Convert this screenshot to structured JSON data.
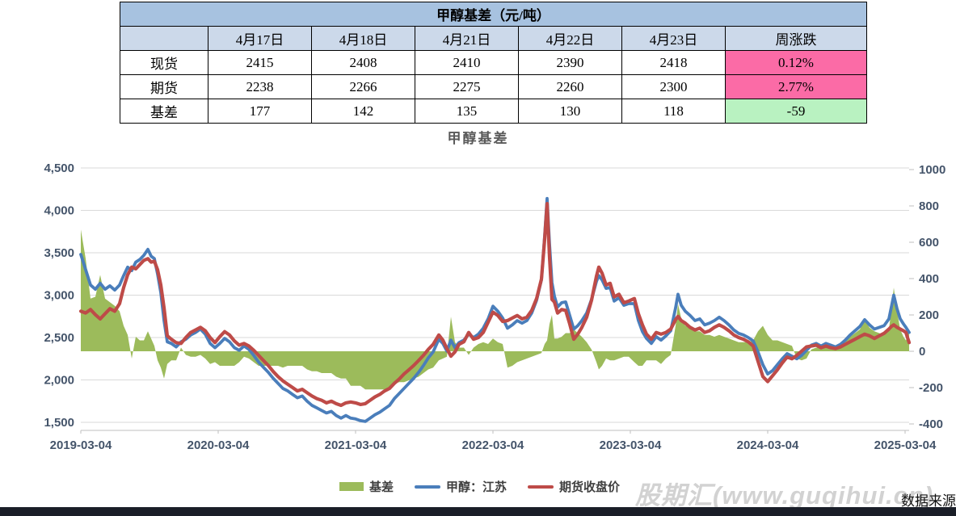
{
  "table": {
    "title": "甲醇基差（元/吨）",
    "columns": [
      "",
      "4月17日",
      "4月18日",
      "4月21日",
      "4月22日",
      "4月23日",
      "周涨跌"
    ],
    "rows": [
      {
        "label": "现货",
        "values": [
          "2415",
          "2408",
          "2410",
          "2390",
          "2418"
        ],
        "change": "0.12%",
        "change_style": "pink"
      },
      {
        "label": "期货",
        "values": [
          "2238",
          "2266",
          "2275",
          "2260",
          "2300"
        ],
        "change": "2.77%",
        "change_style": "pink"
      },
      {
        "label": "基差",
        "values": [
          "177",
          "142",
          "135",
          "130",
          "118"
        ],
        "change": "-59",
        "change_style": "green"
      }
    ]
  },
  "chart_data": {
    "type": "line",
    "title": "甲醇基差",
    "left_axis": {
      "min": 1500,
      "max": 4500,
      "step": 500,
      "ticks": [
        "4,500",
        "4,000",
        "3,500",
        "3,000",
        "2,500",
        "2,000",
        "1,500"
      ]
    },
    "right_axis": {
      "min": -400,
      "max": 1000,
      "step": 200,
      "ticks": [
        "1000",
        "800",
        "600",
        "400",
        "200",
        "0",
        "-200",
        "-400"
      ]
    },
    "x_ticks": [
      "2019-03-04",
      "2020-03-04",
      "2021-03-04",
      "2022-03-04",
      "2023-03-04",
      "2024-03-04",
      "2025-03-04"
    ],
    "grid": true,
    "legend_position": "bottom",
    "series": [
      {
        "name": "基差",
        "type": "area",
        "axis": "right",
        "color": "#9CBB5B",
        "derived": "spot_minus_futures"
      },
      {
        "name": "甲醇：江苏",
        "type": "line",
        "axis": "left",
        "color": "#4A7EBB",
        "key": "spot"
      },
      {
        "name": "期货收盘价",
        "type": "line",
        "axis": "left",
        "color": "#BE4B48",
        "key": "futures"
      }
    ],
    "x_rel": [
      0,
      6,
      12,
      18,
      24,
      30,
      36,
      42,
      48,
      53,
      58,
      63,
      68,
      73,
      78,
      83,
      87,
      91,
      95,
      99,
      103,
      107,
      112,
      118,
      124,
      130,
      136,
      142,
      148,
      154,
      160,
      166,
      172,
      178,
      184,
      190,
      196,
      202,
      208,
      214,
      220,
      226,
      232,
      238,
      244,
      250,
      256,
      262,
      268,
      274,
      280,
      286,
      292,
      298,
      304,
      310,
      316,
      322,
      328,
      334,
      340,
      346,
      352,
      358,
      364,
      370,
      376,
      382,
      388,
      394,
      400,
      406,
      412,
      418,
      424,
      430,
      436,
      443,
      448,
      453,
      458,
      463,
      468,
      474,
      480,
      486,
      492,
      498,
      504,
      510,
      516,
      522,
      528,
      534,
      540,
      546,
      552,
      558,
      564,
      570,
      574,
      577,
      580,
      583,
      586,
      590,
      595,
      600,
      605,
      610,
      615,
      620,
      626,
      632,
      638,
      641,
      645,
      650,
      655,
      660,
      666,
      672,
      678,
      685,
      690,
      695,
      700,
      706,
      712,
      718,
      724,
      730,
      736,
      739,
      743,
      748,
      754,
      760,
      766,
      772,
      778,
      784,
      790,
      796,
      802,
      808,
      814,
      820,
      826,
      832,
      838,
      844,
      850,
      856,
      862,
      868,
      874,
      880,
      886,
      892,
      898,
      904,
      910,
      916,
      922,
      928,
      934,
      940,
      946,
      952,
      958,
      964,
      970,
      976,
      982,
      988,
      994,
      1000,
      1003,
      1006,
      1010,
      1014,
      1018,
      1021,
      1025
    ],
    "x_rel_span": 1025,
    "x_tick_spacing": 170,
    "spot": [
      3480,
      3300,
      3120,
      3070,
      3140,
      3070,
      3110,
      3060,
      3120,
      3230,
      3330,
      3290,
      3390,
      3420,
      3470,
      3540,
      3460,
      3430,
      3250,
      3030,
      2700,
      2450,
      2430,
      2390,
      2450,
      2480,
      2530,
      2560,
      2600,
      2540,
      2430,
      2380,
      2430,
      2490,
      2450,
      2380,
      2350,
      2400,
      2360,
      2290,
      2210,
      2150,
      2090,
      2020,
      1960,
      1900,
      1870,
      1830,
      1790,
      1810,
      1750,
      1700,
      1670,
      1640,
      1610,
      1630,
      1580,
      1550,
      1580,
      1550,
      1540,
      1520,
      1510,
      1550,
      1590,
      1620,
      1660,
      1700,
      1780,
      1840,
      1900,
      1960,
      2020,
      2090,
      2170,
      2260,
      2330,
      2480,
      2430,
      2340,
      2470,
      2380,
      2440,
      2470,
      2540,
      2500,
      2540,
      2610,
      2720,
      2870,
      2810,
      2730,
      2610,
      2650,
      2700,
      2670,
      2700,
      2790,
      2940,
      3180,
      3700,
      4140,
      3600,
      3150,
      2990,
      2860,
      2910,
      2920,
      2760,
      2600,
      2640,
      2700,
      2790,
      2950,
      3160,
      3230,
      3180,
      3080,
      3090,
      2930,
      2970,
      2880,
      2900,
      2900,
      2700,
      2570,
      2490,
      2430,
      2510,
      2470,
      2520,
      2580,
      2850,
      3010,
      2880,
      2810,
      2760,
      2700,
      2720,
      2650,
      2670,
      2700,
      2740,
      2700,
      2650,
      2590,
      2550,
      2530,
      2500,
      2460,
      2330,
      2180,
      2070,
      2110,
      2180,
      2250,
      2310,
      2280,
      2250,
      2290,
      2350,
      2410,
      2430,
      2400,
      2430,
      2410,
      2390,
      2420,
      2470,
      2530,
      2580,
      2630,
      2710,
      2650,
      2600,
      2620,
      2640,
      2720,
      2860,
      3000,
      2840,
      2720,
      2660,
      2620,
      2560
    ],
    "futures": [
      2810,
      2790,
      2830,
      2770,
      2720,
      2780,
      2840,
      2810,
      2900,
      3090,
      3240,
      3330,
      3310,
      3360,
      3410,
      3430,
      3390,
      3400,
      3300,
      3120,
      2850,
      2520,
      2480,
      2440,
      2430,
      2500,
      2560,
      2590,
      2620,
      2580,
      2500,
      2440,
      2510,
      2570,
      2530,
      2460,
      2410,
      2430,
      2400,
      2350,
      2290,
      2230,
      2170,
      2100,
      2040,
      1990,
      1950,
      1910,
      1870,
      1890,
      1850,
      1810,
      1780,
      1760,
      1730,
      1750,
      1720,
      1700,
      1730,
      1740,
      1730,
      1710,
      1720,
      1760,
      1800,
      1830,
      1870,
      1900,
      1960,
      2010,
      2070,
      2120,
      2170,
      2230,
      2290,
      2360,
      2420,
      2530,
      2470,
      2370,
      2280,
      2330,
      2420,
      2450,
      2560,
      2480,
      2500,
      2560,
      2680,
      2800,
      2760,
      2690,
      2700,
      2730,
      2760,
      2720,
      2740,
      2820,
      2960,
      3190,
      3660,
      4080,
      3450,
      2950,
      2920,
      2790,
      2830,
      2820,
      2660,
      2480,
      2540,
      2620,
      2740,
      2940,
      3220,
      3330,
      3260,
      3120,
      3140,
      2980,
      3010,
      2910,
      2930,
      2960,
      2780,
      2650,
      2540,
      2480,
      2560,
      2540,
      2560,
      2600,
      2710,
      2750,
      2700,
      2670,
      2620,
      2590,
      2610,
      2560,
      2580,
      2620,
      2650,
      2620,
      2580,
      2530,
      2500,
      2480,
      2450,
      2400,
      2220,
      2040,
      1980,
      2050,
      2120,
      2200,
      2270,
      2250,
      2290,
      2340,
      2390,
      2400,
      2410,
      2380,
      2400,
      2380,
      2370,
      2390,
      2420,
      2450,
      2480,
      2510,
      2540,
      2520,
      2490,
      2520,
      2550,
      2600,
      2630,
      2650,
      2620,
      2600,
      2580,
      2560,
      2440
    ]
  },
  "watermark": "股期汇(www.guqihui.cn)",
  "source_note": "数据来源",
  "colors": {
    "table_title_bg": "#A7C2E0",
    "table_head_bg": "#CCD9EA",
    "pink_bg": "#FB6BA6",
    "pink_text": "#8E24AA",
    "green_bg": "#B9F2C1",
    "green_text": "#129E4D",
    "axis_text": "#44546A",
    "gridline": "#D9D9D9",
    "axis_line": "#BFBFBF",
    "chart_title": "#595959",
    "bottom_bar": "#1A1E28"
  }
}
